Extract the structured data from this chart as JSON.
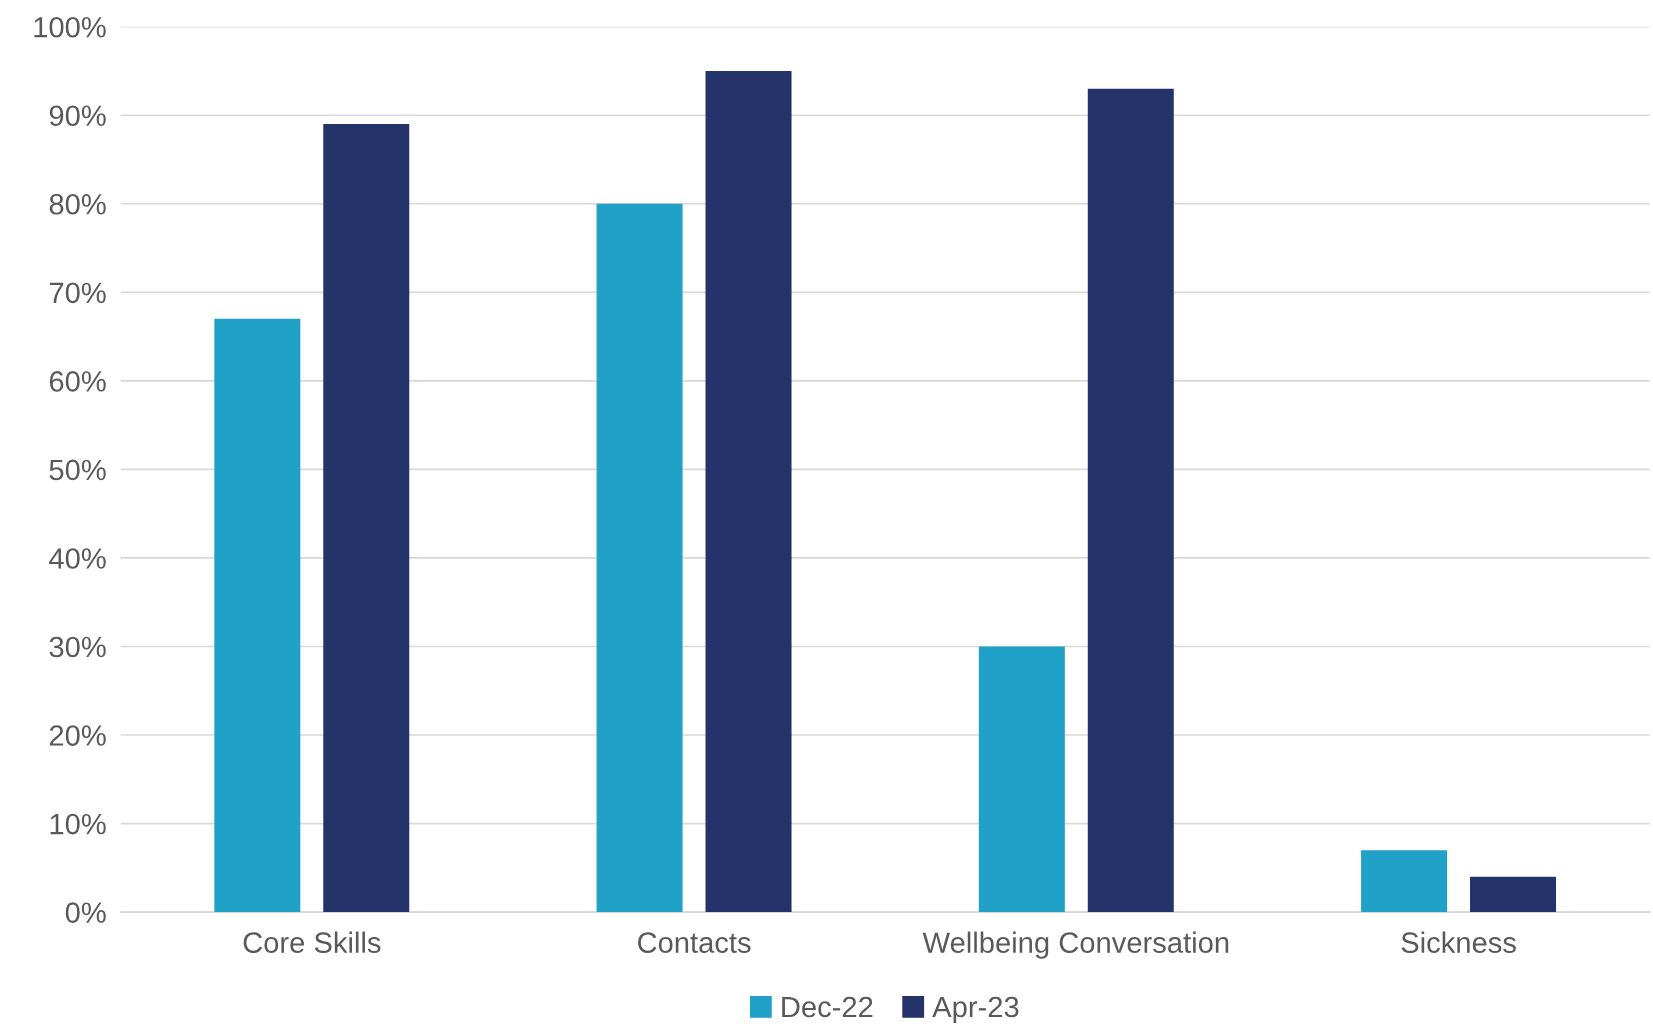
{
  "chart_data": {
    "type": "bar",
    "categories": [
      "Core Skills",
      "Contacts",
      "Wellbeing Conversation",
      "Sickness"
    ],
    "series": [
      {
        "name": "Dec-22",
        "color": "#21a0c8",
        "values": [
          67,
          80,
          30,
          7
        ]
      },
      {
        "name": "Apr-23",
        "color": "#25336b",
        "values": [
          89,
          95,
          93,
          4
        ]
      }
    ],
    "ylim": [
      0,
      100
    ],
    "yticks": [
      {
        "value": 0,
        "label": "0%"
      },
      {
        "value": 10,
        "label": "10%"
      },
      {
        "value": 20,
        "label": "20%"
      },
      {
        "value": 30,
        "label": "30%"
      },
      {
        "value": 40,
        "label": "40%"
      },
      {
        "value": 50,
        "label": "50%"
      },
      {
        "value": 60,
        "label": "60%"
      },
      {
        "value": 70,
        "label": "70%"
      },
      {
        "value": 80,
        "label": "80%"
      },
      {
        "value": 90,
        "label": "90%"
      },
      {
        "value": 100,
        "label": "100%"
      }
    ],
    "grid": "y",
    "legend": "bottom"
  }
}
